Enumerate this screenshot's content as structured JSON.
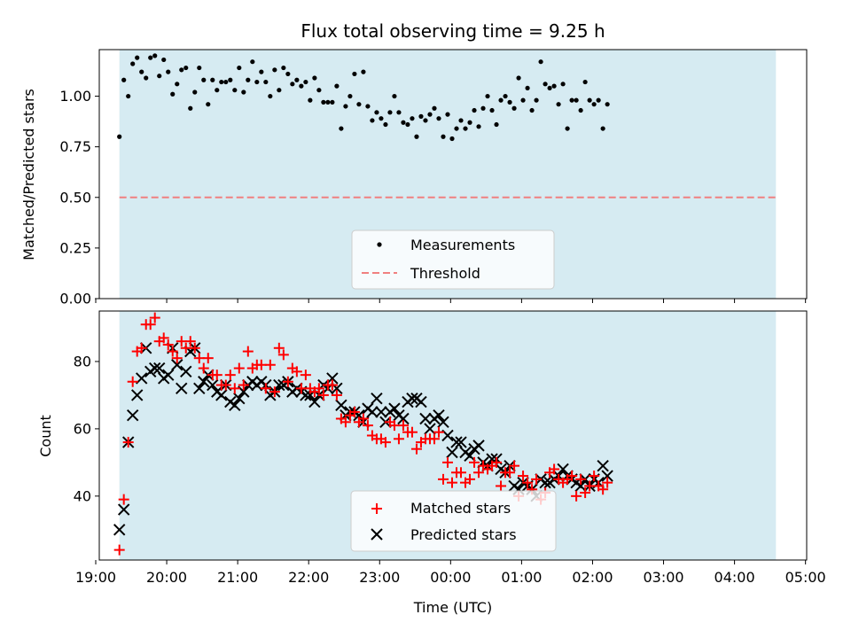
{
  "chart_data": [
    {
      "type": "scatter",
      "title": "Flux total observing time = 9.25 h",
      "xlabel": "",
      "ylabel": "Matched/Predicted stars",
      "xlim": [
        "19:03",
        "05:01"
      ],
      "ylim": [
        0,
        1.23
      ],
      "yticks": [
        0.0,
        0.25,
        0.5,
        0.75,
        1.0
      ],
      "ytick_labels": [
        "0.00",
        "0.25",
        "0.50",
        "0.75",
        "1.00"
      ],
      "shaded_span": [
        "19:20",
        "04:35"
      ],
      "grid": false,
      "legend_position": "lower-center",
      "series": [
        {
          "name": "Measurements",
          "marker": "dot",
          "color": "#000000",
          "x_start": "19:20",
          "x_step_min": 3.75,
          "values": [
            0.8,
            1.08,
            1.0,
            1.16,
            1.19,
            1.12,
            1.09,
            1.19,
            1.2,
            1.1,
            1.18,
            1.12,
            1.01,
            1.06,
            1.13,
            1.14,
            0.94,
            1.02,
            1.14,
            1.08,
            0.96,
            1.08,
            1.03,
            1.07,
            1.07,
            1.08,
            1.03,
            1.14,
            1.02,
            1.08,
            1.17,
            1.07,
            1.12,
            1.07,
            1.0,
            1.13,
            1.03,
            1.14,
            1.11,
            1.06,
            1.08,
            1.05,
            1.07,
            0.98,
            1.09,
            1.03,
            0.97,
            0.97,
            0.97,
            1.05,
            0.84,
            0.95,
            1.0,
            1.11,
            0.96,
            1.12,
            0.95,
            0.88,
            0.92,
            0.89,
            0.86,
            0.92,
            1.0,
            0.92,
            0.87,
            0.86,
            0.89,
            0.8,
            0.9,
            0.88,
            0.91,
            0.94,
            0.89,
            0.8,
            0.91,
            0.79,
            0.84,
            0.88,
            0.84,
            0.87,
            0.93,
            0.85,
            0.94,
            1.0,
            0.93,
            0.86,
            0.98,
            1.0,
            0.97,
            0.94,
            1.09,
            0.98,
            1.04,
            0.93,
            0.98,
            1.17,
            1.06,
            1.04,
            1.05,
            0.96,
            1.06,
            0.84,
            0.98,
            0.98,
            0.93,
            1.07,
            0.98,
            0.96,
            0.98,
            0.84,
            0.96
          ]
        },
        {
          "name": "Threshold",
          "marker": "dashed-line",
          "color": "#f08080",
          "x": [
            "19:20",
            "04:35"
          ],
          "values": [
            0.5,
            0.5
          ]
        }
      ]
    },
    {
      "type": "scatter",
      "title": "",
      "xlabel": "Time (UTC)",
      "ylabel": "Count",
      "xlim": [
        "19:03",
        "05:01"
      ],
      "ylim": [
        21,
        95
      ],
      "yticks": [
        40,
        60,
        80
      ],
      "ytick_labels": [
        "40",
        "60",
        "80"
      ],
      "xticks": [
        "19:00",
        "20:00",
        "21:00",
        "22:00",
        "23:00",
        "00:00",
        "01:00",
        "02:00",
        "03:00",
        "04:00",
        "05:00"
      ],
      "shaded_span": [
        "19:20",
        "04:35"
      ],
      "grid": false,
      "legend_position": "lower-center",
      "series": [
        {
          "name": "Matched stars",
          "marker": "plus",
          "color": "#ff0000",
          "x_start": "19:20",
          "x_step_min": 3.75,
          "values": [
            24,
            39,
            56,
            74,
            83,
            84,
            91,
            91,
            93,
            86,
            87,
            85,
            83,
            81,
            86,
            84,
            86,
            84,
            81,
            78,
            81,
            76,
            76,
            73,
            73,
            76,
            72,
            78,
            73,
            83,
            78,
            79,
            79,
            72,
            79,
            71,
            84,
            82,
            74,
            78,
            77,
            72,
            76,
            72,
            71,
            72,
            70,
            73,
            73,
            70,
            63,
            62,
            64,
            65,
            62,
            63,
            61,
            58,
            57,
            57,
            56,
            62,
            61,
            57,
            61,
            59,
            59,
            54,
            56,
            57,
            57,
            57,
            59,
            45,
            50,
            44,
            47,
            47,
            44,
            45,
            50,
            47,
            49,
            48,
            49,
            50,
            43,
            47,
            47,
            49,
            40,
            46,
            44,
            42,
            45,
            39,
            41,
            47,
            48,
            45,
            44,
            45,
            46,
            40,
            45,
            41,
            43,
            46,
            43,
            42,
            44
          ]
        },
        {
          "name": "Predicted stars",
          "marker": "x",
          "color": "#000000",
          "x_start": "19:20",
          "x_step_min": 3.75,
          "values": [
            30,
            36,
            56,
            64,
            70,
            75,
            84,
            77,
            78,
            78,
            75,
            76,
            84,
            79,
            72,
            77,
            83,
            84,
            72,
            74,
            76,
            73,
            71,
            70,
            73,
            68,
            67,
            69,
            71,
            73,
            74,
            73,
            74,
            73,
            70,
            71,
            73,
            73,
            74,
            71,
            72,
            71,
            70,
            70,
            68,
            70,
            73,
            72,
            75,
            72,
            67,
            64,
            65,
            65,
            64,
            62,
            66,
            65,
            69,
            65,
            62,
            65,
            66,
            64,
            63,
            68,
            69,
            69,
            68,
            63,
            60,
            63,
            64,
            62,
            58,
            53,
            56,
            56,
            53,
            52,
            54,
            55,
            50,
            49,
            51,
            51,
            48,
            47,
            49,
            43,
            42,
            44,
            43,
            42,
            40,
            45,
            44,
            44,
            45,
            46,
            48,
            46,
            45,
            44,
            43,
            45,
            43,
            45,
            44,
            49,
            46
          ]
        }
      ]
    }
  ]
}
